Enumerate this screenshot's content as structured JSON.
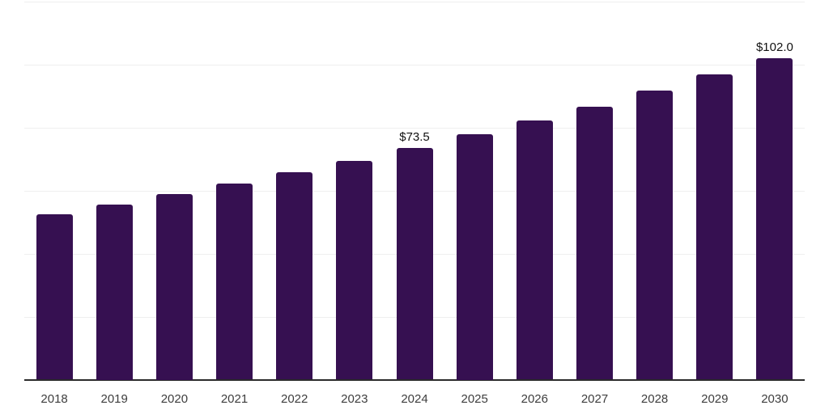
{
  "chart_data": {
    "type": "bar",
    "categories": [
      "2018",
      "2019",
      "2020",
      "2021",
      "2022",
      "2023",
      "2024",
      "2025",
      "2026",
      "2027",
      "2028",
      "2029",
      "2030"
    ],
    "values": [
      52.4,
      55.7,
      58.9,
      62.3,
      65.8,
      69.4,
      73.5,
      77.9,
      82.2,
      86.7,
      91.7,
      96.8,
      102.0
    ],
    "data_labels": [
      {
        "index": 6,
        "text": "$73.5"
      },
      {
        "index": 12,
        "text": "$102.0"
      }
    ],
    "ylim": [
      0,
      120
    ],
    "gridline_step": 20,
    "grid": true,
    "legend": false,
    "y_tick_labels_shown": false,
    "xlabel": "",
    "ylabel": ""
  },
  "colors": {
    "bar": "#361051",
    "axis_line": "#2b2b2b",
    "gridline": "#efefef",
    "tick_label": "#3d3d3d",
    "data_label": "#121212",
    "background": "#ffffff"
  }
}
